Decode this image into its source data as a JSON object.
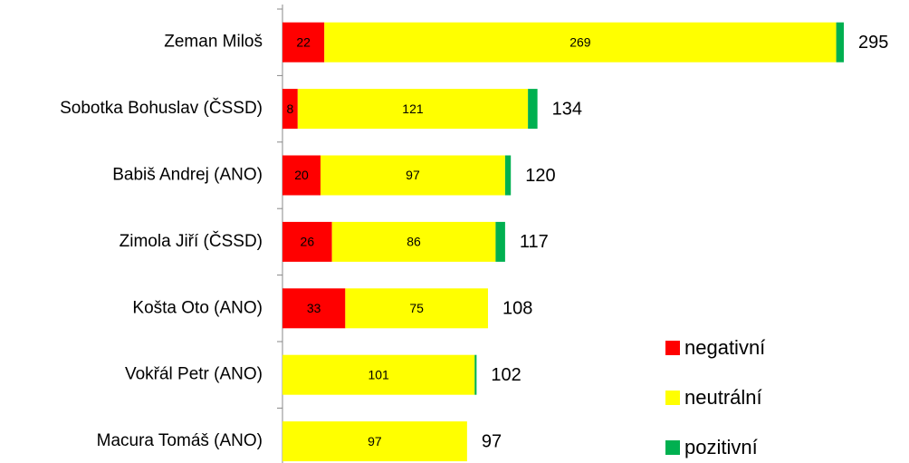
{
  "chart_data": {
    "type": "stacked-bar-horizontal",
    "categories": [
      "Zeman Miloš",
      "Sobotka Bohuslav (ČSSD)",
      "Babiš Andrej (ANO)",
      "Zimola Jiří (ČSSD)",
      "Košta Oto (ANO)",
      "Vokřál Petr (ANO)",
      "Macura Tomáš (ANO)"
    ],
    "series": [
      {
        "name": "negativní",
        "color": "#ff0000",
        "values": [
          22,
          8,
          20,
          26,
          33,
          0,
          0
        ],
        "data_labels": true
      },
      {
        "name": "neutrální",
        "color": "#ffff00",
        "values": [
          269,
          121,
          97,
          86,
          75,
          101,
          97
        ],
        "data_labels": true
      },
      {
        "name": "pozitivní",
        "color": "#00b050",
        "values": [
          4,
          5,
          3,
          5,
          0,
          1,
          0
        ],
        "data_labels": false
      }
    ],
    "totals": [
      295,
      134,
      120,
      117,
      108,
      102,
      97
    ],
    "legend": "bottom-right"
  }
}
